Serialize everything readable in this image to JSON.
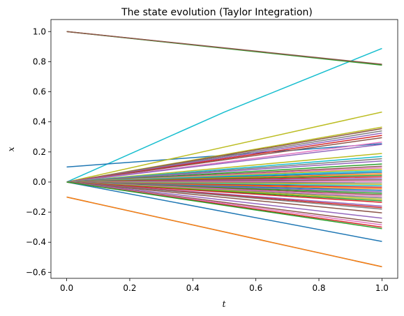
{
  "chart_data": {
    "type": "line",
    "title": "The state evolution (Taylor Integration)",
    "xlabel": "t",
    "ylabel": "x",
    "xlim": [
      -0.05,
      1.05
    ],
    "ylim": [
      -0.64,
      1.08
    ],
    "grid": false,
    "xticks": [
      0.0,
      0.2,
      0.4,
      0.6,
      0.8,
      1.0
    ],
    "yticks": [
      -0.6,
      -0.4,
      -0.2,
      0.0,
      0.2,
      0.4,
      0.6,
      0.8,
      1.0
    ],
    "xtick_labels": [
      "0.0",
      "0.2",
      "0.4",
      "0.6",
      "0.8",
      "1.0"
    ],
    "ytick_labels": [
      "−0.6",
      "−0.4",
      "−0.2",
      "0.0",
      "0.2",
      "0.4",
      "0.6",
      "0.8",
      "1.0"
    ],
    "series": [
      {
        "color": "#1f77b4",
        "x": [
          0,
          1
        ],
        "y": [
          -0.1,
          -0.563
        ]
      },
      {
        "color": "#ff7f0e",
        "x": [
          0,
          1
        ],
        "y": [
          -0.1,
          -0.563
        ]
      },
      {
        "color": "#17becf",
        "x": [
          0,
          0.5,
          1
        ],
        "y": [
          0.0,
          0.465,
          0.888
        ]
      },
      {
        "color": "#1f77b4",
        "x": [
          0,
          1
        ],
        "y": [
          0.1,
          0.255
        ]
      },
      {
        "color": "#1f77b4",
        "x": [
          0,
          1
        ],
        "y": [
          0.0,
          -0.395
        ]
      },
      {
        "color": "#d62728",
        "x": [
          0,
          1
        ],
        "y": [
          1.0,
          0.78
        ]
      },
      {
        "color": "#2ca02c",
        "x": [
          0,
          1
        ],
        "y": [
          1.0,
          0.777
        ]
      },
      {
        "color": "#8c564b",
        "x": [
          0,
          1
        ],
        "y": [
          1.0,
          0.783
        ]
      },
      {
        "color": "#bcbd22",
        "x": [
          0,
          1
        ],
        "y": [
          0.0,
          0.465
        ]
      },
      {
        "color": "#bcbd22",
        "x": [
          0,
          1
        ],
        "y": [
          0.0,
          0.365
        ]
      },
      {
        "color": "#8c564b",
        "x": [
          0,
          1
        ],
        "y": [
          0.0,
          0.355
        ]
      },
      {
        "color": "#7f7f7f",
        "x": [
          0,
          1
        ],
        "y": [
          0.0,
          0.34
        ]
      },
      {
        "color": "#9467bd",
        "x": [
          0,
          1
        ],
        "y": [
          0.0,
          0.325
        ]
      },
      {
        "color": "#d62728",
        "x": [
          0,
          1
        ],
        "y": [
          0.0,
          0.31
        ]
      },
      {
        "color": "#8c564b",
        "x": [
          0,
          1
        ],
        "y": [
          0.0,
          0.295
        ]
      },
      {
        "color": "#e377c2",
        "x": [
          0,
          1
        ],
        "y": [
          0.0,
          0.265
        ]
      },
      {
        "color": "#9467bd",
        "x": [
          0,
          1
        ],
        "y": [
          0.0,
          0.25
        ]
      },
      {
        "color": "#bcbd22",
        "x": [
          0,
          1
        ],
        "y": [
          0.0,
          0.19
        ]
      },
      {
        "color": "#17becf",
        "x": [
          0,
          1
        ],
        "y": [
          0.0,
          0.17
        ]
      },
      {
        "color": "#7f7f7f",
        "x": [
          0,
          1
        ],
        "y": [
          0.0,
          0.155
        ]
      },
      {
        "color": "#9467bd",
        "x": [
          0,
          1
        ],
        "y": [
          0.0,
          0.14
        ]
      },
      {
        "color": "#2ca02c",
        "x": [
          0,
          1
        ],
        "y": [
          0.0,
          0.12
        ]
      },
      {
        "color": "#8c564b",
        "x": [
          0,
          1
        ],
        "y": [
          0.0,
          0.105
        ]
      },
      {
        "color": "#e377c2",
        "x": [
          0,
          1
        ],
        "y": [
          0.0,
          0.095
        ]
      },
      {
        "color": "#bcbd22",
        "x": [
          0,
          1
        ],
        "y": [
          0.0,
          0.085
        ]
      },
      {
        "color": "#17becf",
        "x": [
          0,
          1
        ],
        "y": [
          0.0,
          0.075
        ]
      },
      {
        "color": "#1f77b4",
        "x": [
          0,
          1
        ],
        "y": [
          0.0,
          0.065
        ]
      },
      {
        "color": "#ff7f0e",
        "x": [
          0,
          1
        ],
        "y": [
          0.0,
          0.055
        ]
      },
      {
        "color": "#2ca02c",
        "x": [
          0,
          1
        ],
        "y": [
          0.0,
          0.045
        ]
      },
      {
        "color": "#d62728",
        "x": [
          0,
          1
        ],
        "y": [
          0.0,
          0.035
        ]
      },
      {
        "color": "#9467bd",
        "x": [
          0,
          1
        ],
        "y": [
          0.0,
          0.025
        ]
      },
      {
        "color": "#8c564b",
        "x": [
          0,
          1
        ],
        "y": [
          0.0,
          0.015
        ]
      },
      {
        "color": "#e377c2",
        "x": [
          0,
          1
        ],
        "y": [
          0.0,
          0.005
        ]
      },
      {
        "color": "#7f7f7f",
        "x": [
          0,
          1
        ],
        "y": [
          0.0,
          -0.005
        ]
      },
      {
        "color": "#bcbd22",
        "x": [
          0,
          1
        ],
        "y": [
          0.0,
          -0.015
        ]
      },
      {
        "color": "#17becf",
        "x": [
          0,
          1
        ],
        "y": [
          0.0,
          -0.025
        ]
      },
      {
        "color": "#d62728",
        "x": [
          0,
          1
        ],
        "y": [
          0.0,
          -0.035
        ]
      },
      {
        "color": "#ff7f0e",
        "x": [
          0,
          1
        ],
        "y": [
          0.0,
          -0.045
        ]
      },
      {
        "color": "#1f77b4",
        "x": [
          0,
          1
        ],
        "y": [
          0.0,
          -0.055
        ]
      },
      {
        "color": "#9467bd",
        "x": [
          0,
          1
        ],
        "y": [
          0.0,
          -0.065
        ]
      },
      {
        "color": "#2ca02c",
        "x": [
          0,
          1
        ],
        "y": [
          0.0,
          -0.075
        ]
      },
      {
        "color": "#8c564b",
        "x": [
          0,
          1
        ],
        "y": [
          0.0,
          -0.085
        ]
      },
      {
        "color": "#e377c2",
        "x": [
          0,
          1
        ],
        "y": [
          0.0,
          -0.095
        ]
      },
      {
        "color": "#7f7f7f",
        "x": [
          0,
          1
        ],
        "y": [
          0.0,
          -0.105
        ]
      },
      {
        "color": "#bcbd22",
        "x": [
          0,
          1
        ],
        "y": [
          0.0,
          -0.115
        ]
      },
      {
        "color": "#2ca02c",
        "x": [
          0,
          1
        ],
        "y": [
          0.0,
          -0.125
        ]
      },
      {
        "color": "#d62728",
        "x": [
          0,
          1
        ],
        "y": [
          0.0,
          -0.135
        ]
      },
      {
        "color": "#9467bd",
        "x": [
          0,
          1
        ],
        "y": [
          0.0,
          -0.16
        ]
      },
      {
        "color": "#d62728",
        "x": [
          0,
          1
        ],
        "y": [
          0.0,
          -0.17
        ]
      },
      {
        "color": "#7f7f7f",
        "x": [
          0,
          1
        ],
        "y": [
          0.0,
          -0.18
        ]
      },
      {
        "color": "#8c564b",
        "x": [
          0,
          1
        ],
        "y": [
          0.0,
          -0.205
        ]
      },
      {
        "color": "#9467bd",
        "x": [
          0,
          1
        ],
        "y": [
          0.0,
          -0.24
        ]
      },
      {
        "color": "#8c564b",
        "x": [
          0,
          1
        ],
        "y": [
          0.0,
          -0.27
        ]
      },
      {
        "color": "#e377c2",
        "x": [
          0,
          1
        ],
        "y": [
          0.0,
          -0.285
        ]
      },
      {
        "color": "#d62728",
        "x": [
          0,
          1
        ],
        "y": [
          0.0,
          -0.3
        ]
      },
      {
        "color": "#2ca02c",
        "x": [
          0,
          1
        ],
        "y": [
          0.0,
          -0.31
        ]
      }
    ]
  }
}
